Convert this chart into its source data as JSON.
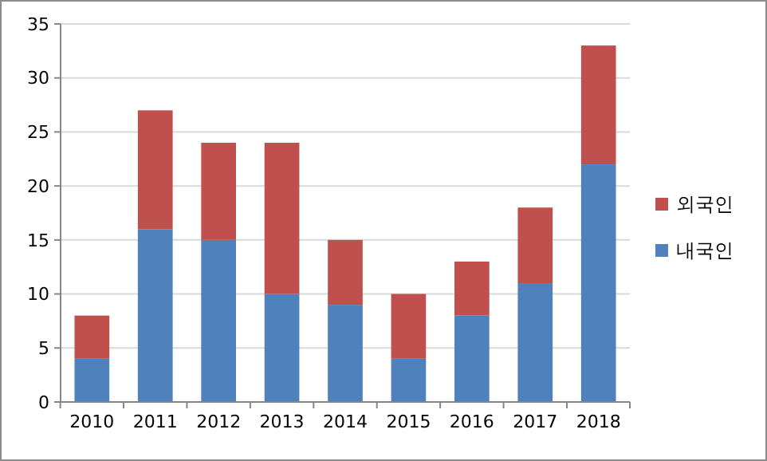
{
  "chart_data": {
    "type": "bar",
    "stacked": true,
    "categories": [
      "2010",
      "2011",
      "2012",
      "2013",
      "2014",
      "2015",
      "2016",
      "2017",
      "2018"
    ],
    "series": [
      {
        "name": "내국인",
        "color": "#4f81bd",
        "values": [
          4,
          16,
          15,
          10,
          9,
          4,
          8,
          11,
          22
        ]
      },
      {
        "name": "외국인",
        "color": "#c0504d",
        "values": [
          4,
          11,
          9,
          14,
          6,
          6,
          5,
          7,
          11
        ]
      }
    ],
    "ylim": [
      0,
      35
    ],
    "yticks": [
      0,
      5,
      10,
      15,
      20,
      25,
      30,
      35
    ],
    "grid": "y",
    "legend": "right"
  }
}
